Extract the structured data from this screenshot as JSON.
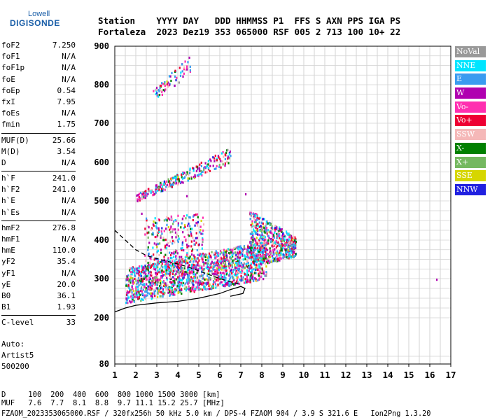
{
  "logo": {
    "line1": "Lowell",
    "line2": "DIGISONDE"
  },
  "header": {
    "row1": "Station    YYYY DAY   DDD HHMMSS P1  FFS S AXN PPS IGA PS",
    "row2": "Fortaleza  2023 Dez19 353 065000 RSF 005 2 713 100 10+ 22"
  },
  "params": {
    "group1": [
      {
        "label": "foF2",
        "value": "7.250"
      },
      {
        "label": "foF1",
        "value": "N/A"
      },
      {
        "label": "foF1p",
        "value": "N/A"
      },
      {
        "label": "foE",
        "value": "N/A"
      },
      {
        "label": "foEp",
        "value": "0.54"
      },
      {
        "label": "fxI",
        "value": "7.95"
      },
      {
        "label": "foEs",
        "value": "N/A"
      },
      {
        "label": "fmin",
        "value": "1.75"
      }
    ],
    "group2": [
      {
        "label": "MUF(D)",
        "value": "25.66"
      },
      {
        "label": "M(D)",
        "value": "3.54"
      },
      {
        "label": "D",
        "value": "N/A"
      }
    ],
    "group3": [
      {
        "label": "h`F",
        "value": "241.0"
      },
      {
        "label": "h`F2",
        "value": "241.0"
      },
      {
        "label": "h`E",
        "value": "N/A"
      },
      {
        "label": "h`Es",
        "value": "N/A"
      }
    ],
    "group4": [
      {
        "label": "hmF2",
        "value": "276.8"
      },
      {
        "label": "hmF1",
        "value": "N/A"
      },
      {
        "label": "hmE",
        "value": "110.0"
      },
      {
        "label": "yF2",
        "value": "35.4"
      },
      {
        "label": "yF1",
        "value": "N/A"
      },
      {
        "label": "yE",
        "value": "20.0"
      },
      {
        "label": "B0",
        "value": "36.1"
      },
      {
        "label": "B1",
        "value": "1.93"
      }
    ],
    "group5": [
      {
        "label": "C-level",
        "value": "33"
      }
    ]
  },
  "auto": {
    "line1": "Auto:",
    "line2": "Artist5",
    "line3": "500200"
  },
  "legend": [
    {
      "label": "NoVal",
      "color": "#999999"
    },
    {
      "label": "NNE",
      "color": "#00e5ff"
    },
    {
      "label": "E",
      "color": "#3a9bf0"
    },
    {
      "label": "W",
      "color": "#b000b0"
    },
    {
      "label": "Vo-",
      "color": "#ff2fb0"
    },
    {
      "label": "Vo+",
      "color": "#ee0033"
    },
    {
      "label": "SSW",
      "color": "#f5b8b8"
    },
    {
      "label": "X-",
      "color": "#008000"
    },
    {
      "label": "X+",
      "color": "#74b860"
    },
    {
      "label": "SSE",
      "color": "#d6d600"
    },
    {
      "label": "NNW",
      "color": "#2020e0"
    }
  ],
  "footer": {
    "d_row": "D     100  200  400  600  800 1000 1500 3000 [km]",
    "muf_row": "MUF   7.6  7.7  8.1  8.8  9.7 11.1 15.2 25.7 [MHz]",
    "file_line": "FZAOM_2023353065000.RSF / 320fx256h 50 kHz 5.0 km / DPS-4 FZAOM 904 / 3.9 S 321.6 E   Ion2Png 1.3.20"
  },
  "chart_data": {
    "type": "scatter",
    "xlim": [
      1,
      17
    ],
    "ylim": [
      80,
      900
    ],
    "x_ticks": [
      "1",
      "2",
      "3",
      "4",
      "5",
      "6",
      "7",
      "8",
      "9",
      "10",
      "11",
      "12",
      "13",
      "14",
      "15",
      "16",
      "17"
    ],
    "y_tick_values": [
      200,
      300,
      400,
      500,
      600,
      700,
      800,
      900
    ],
    "y_ticks": [
      "80",
      "200",
      "300",
      "400",
      "500",
      "600",
      "700",
      "800",
      "900"
    ],
    "grid": true,
    "legend_position": "right",
    "clusters": [
      {
        "name": "F-trace",
        "x_range": [
          1.5,
          8.2
        ],
        "y_start": [
          240,
          330
        ],
        "y_end": [
          300,
          400
        ],
        "count": 1500
      },
      {
        "name": "F-high",
        "x_range": [
          7.4,
          9.6
        ],
        "y_start": [
          330,
          480
        ],
        "y_end": [
          360,
          410
        ],
        "count": 600
      },
      {
        "name": "2F-trace",
        "x_range": [
          2.0,
          6.5
        ],
        "y_start": [
          500,
          520
        ],
        "y_end": [
          600,
          640
        ],
        "count": 260
      },
      {
        "name": "3F-trace",
        "x_range": [
          2.8,
          4.6
        ],
        "y_start": [
          760,
          790
        ],
        "y_end": [
          830,
          880
        ],
        "count": 70
      },
      {
        "name": "vertical-spread",
        "x_range": [
          2.4,
          5.2
        ],
        "y_start": [
          300,
          460
        ],
        "y_end": [
          320,
          470
        ],
        "count": 300
      }
    ],
    "lines": [
      {
        "name": "solid-profile",
        "points": [
          [
            1.0,
            215
          ],
          [
            1.5,
            225
          ],
          [
            2.0,
            232
          ],
          [
            3.0,
            238
          ],
          [
            4.0,
            242
          ],
          [
            5.0,
            250
          ],
          [
            6.0,
            262
          ],
          [
            6.5,
            272
          ],
          [
            7.0,
            280
          ],
          [
            7.2,
            275
          ],
          [
            7.1,
            262
          ],
          [
            6.5,
            255
          ]
        ]
      },
      {
        "name": "dashed-profile",
        "style": "dashed",
        "points": [
          [
            1.0,
            425
          ],
          [
            1.5,
            400
          ],
          [
            2.0,
            375
          ],
          [
            2.5,
            360
          ],
          [
            3.0,
            352
          ],
          [
            3.5,
            345
          ],
          [
            4.0,
            338
          ],
          [
            4.5,
            330
          ],
          [
            5.0,
            320
          ],
          [
            5.5,
            310
          ],
          [
            6.0,
            300
          ],
          [
            6.5,
            292
          ],
          [
            7.0,
            285
          ]
        ]
      }
    ],
    "isolated_points": [
      [
        16.3,
        300
      ],
      [
        2.25,
        470
      ],
      [
        4.4,
        515
      ],
      [
        7.2,
        520
      ]
    ]
  }
}
